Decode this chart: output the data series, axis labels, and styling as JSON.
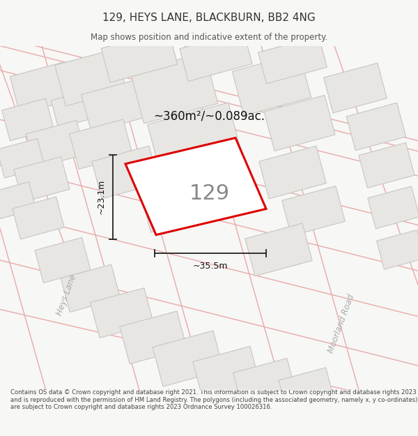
{
  "title": "129, HEYS LANE, BLACKBURN, BB2 4NG",
  "subtitle": "Map shows position and indicative extent of the property.",
  "footer": "Contains OS data © Crown copyright and database right 2021. This information is subject to Crown copyright and database rights 2023 and is reproduced with the permission of HM Land Registry. The polygons (including the associated geometry, namely x, y co-ordinates) are subject to Crown copyright and database rights 2023 Ordnance Survey 100026316.",
  "title_color": "#333333",
  "subtitle_color": "#555555",
  "footer_color": "#444444",
  "bg_color": "#f7f7f5",
  "map_bg": "#f2f0ed",
  "building_face": "#e8e6e3",
  "building_edge": "#c8c6c3",
  "road_line_color": "#e8aaaa",
  "highlight_color": "#dd0000",
  "street_color": "#aaaaaa",
  "label_color": "#888888",
  "dim_color": "#222222",
  "area_label": "~360m²/~0.089ac.",
  "dim_width": "~35.5m",
  "dim_height": "~23.1m",
  "label_129": "129",
  "street_left": "Heys Lane",
  "street_right": "Moorland Road"
}
